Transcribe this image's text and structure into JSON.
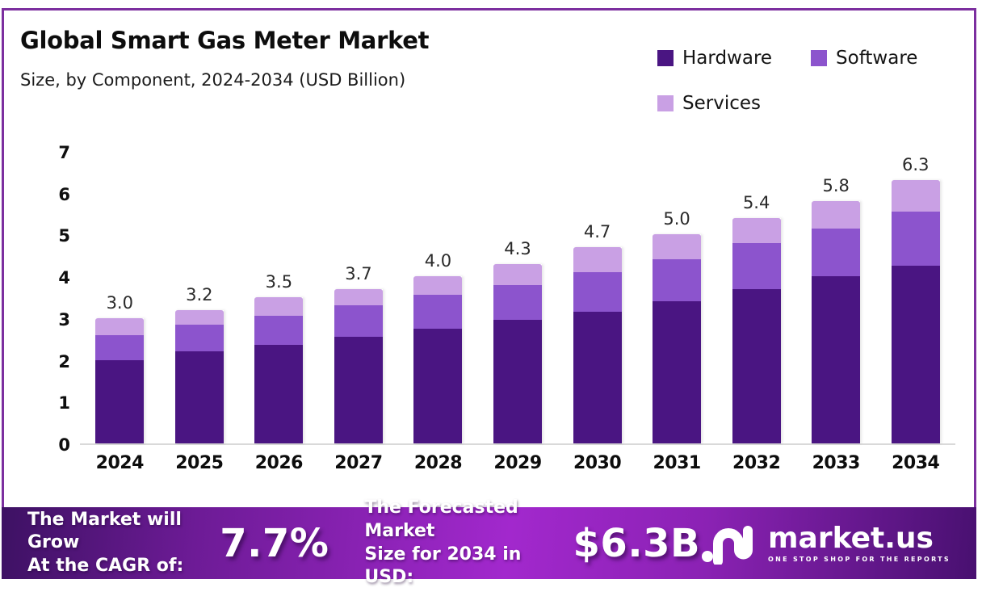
{
  "header": {
    "title": "Global Smart Gas Meter Market",
    "subtitle": "Size, by Component, 2024-2034 (USD Billion)"
  },
  "chart_data": {
    "type": "bar",
    "stacked": true,
    "title": "Global Smart Gas Meter Market Size, by Component, 2024-2034 (USD Billion)",
    "categories": [
      "2024",
      "2025",
      "2026",
      "2027",
      "2028",
      "2029",
      "2030",
      "2031",
      "2032",
      "2033",
      "2034"
    ],
    "series": [
      {
        "name": "Hardware",
        "color": "#4a1582",
        "values": [
          2.0,
          2.2,
          2.35,
          2.55,
          2.75,
          2.95,
          3.15,
          3.4,
          3.7,
          4.0,
          4.25
        ]
      },
      {
        "name": "Software",
        "color": "#8c54cd",
        "values": [
          0.6,
          0.65,
          0.7,
          0.75,
          0.8,
          0.85,
          0.95,
          1.0,
          1.1,
          1.15,
          1.3
        ]
      },
      {
        "name": "Services",
        "color": "#c9a0e4",
        "values": [
          0.4,
          0.35,
          0.45,
          0.4,
          0.45,
          0.5,
          0.6,
          0.6,
          0.6,
          0.65,
          0.75
        ]
      }
    ],
    "total_labels": [
      "3.0",
      "3.2",
      "3.5",
      "3.7",
      "4.0",
      "4.3",
      "4.7",
      "5.0",
      "5.4",
      "5.8",
      "6.3"
    ],
    "xlabel": "",
    "ylabel": "",
    "ylim": [
      0,
      7
    ],
    "yticks": [
      0,
      1,
      2,
      3,
      4,
      5,
      6,
      7
    ],
    "legend_position": "top-right",
    "grid": false
  },
  "footer": {
    "cagr_line1": "The Market will Grow",
    "cagr_line2": "At the CAGR of:",
    "cagr_value": "7.7%",
    "forecast_line1": "The Forecasted Market",
    "forecast_line2": "Size for 2034 in USD:",
    "forecast_value": "$6.3B",
    "brand_name": "market.us",
    "brand_tagline": "ONE STOP SHOP FOR THE REPORTS"
  },
  "colors": {
    "frame_border": "#7c2f9f",
    "hardware": "#4a1582",
    "software": "#8c54cd",
    "services": "#c9a0e4",
    "banner_gradient_start": "#3d1163",
    "banner_gradient_mid": "#a228cd",
    "banner_gradient_end": "#481070",
    "baseline": "#d9d9d9",
    "text": "#111111"
  }
}
